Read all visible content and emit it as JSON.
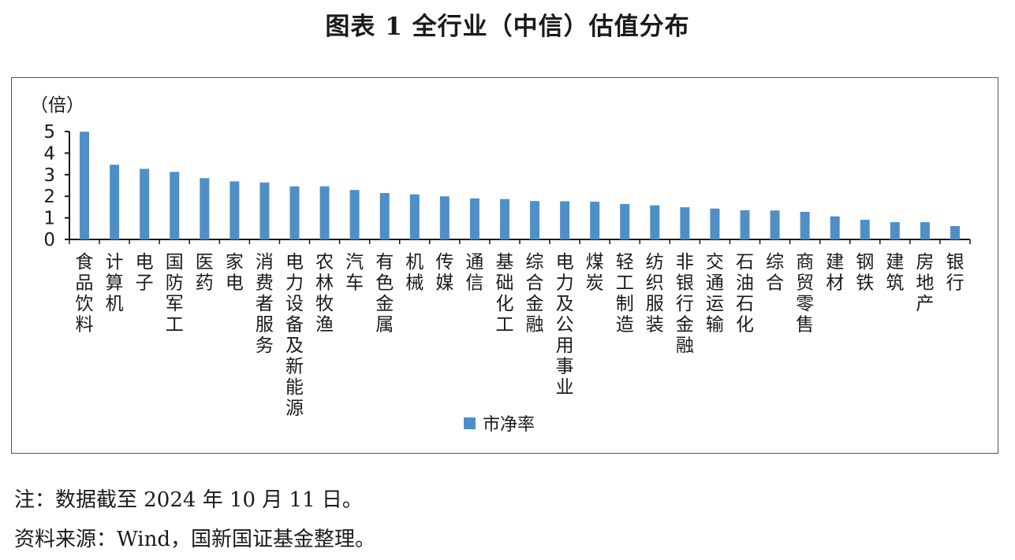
{
  "title": "图表 1  全行业（中信）估值分布",
  "notes": {
    "line1": "注：数据截至 2024 年 10 月 11 日。",
    "line2": "资料来源：Wind，国新国证基金整理。"
  },
  "chart_data": {
    "type": "bar",
    "ylabel": "（倍）",
    "ylim": [
      0,
      5
    ],
    "yticks": [
      0,
      1,
      2,
      3,
      4,
      5
    ],
    "grid": false,
    "legend_position": "bottom-center",
    "bar_color": "#4f8fc6",
    "categories": [
      "食品饮料",
      "计算机",
      "电子",
      "国防军工",
      "医药",
      "家电",
      "消费者服务",
      "电力设备及新能源",
      "农林牧渔",
      "汽车",
      "有色金属",
      "机械",
      "传媒",
      "通信",
      "基础化工",
      "综合金融",
      "电力及公用事业",
      "煤炭",
      "轻工制造",
      "纺织服装",
      "非银行金融",
      "交通运输",
      "石油石化",
      "综合",
      "商贸零售",
      "建材",
      "钢铁",
      "建筑",
      "房地产",
      "银行"
    ],
    "series": [
      {
        "name": "市净率",
        "values": [
          4.99,
          3.46,
          3.27,
          3.13,
          2.84,
          2.69,
          2.64,
          2.46,
          2.46,
          2.29,
          2.15,
          2.09,
          2.0,
          1.9,
          1.87,
          1.78,
          1.77,
          1.75,
          1.64,
          1.58,
          1.49,
          1.43,
          1.35,
          1.34,
          1.28,
          1.07,
          0.91,
          0.8,
          0.8,
          0.62
        ]
      }
    ]
  }
}
